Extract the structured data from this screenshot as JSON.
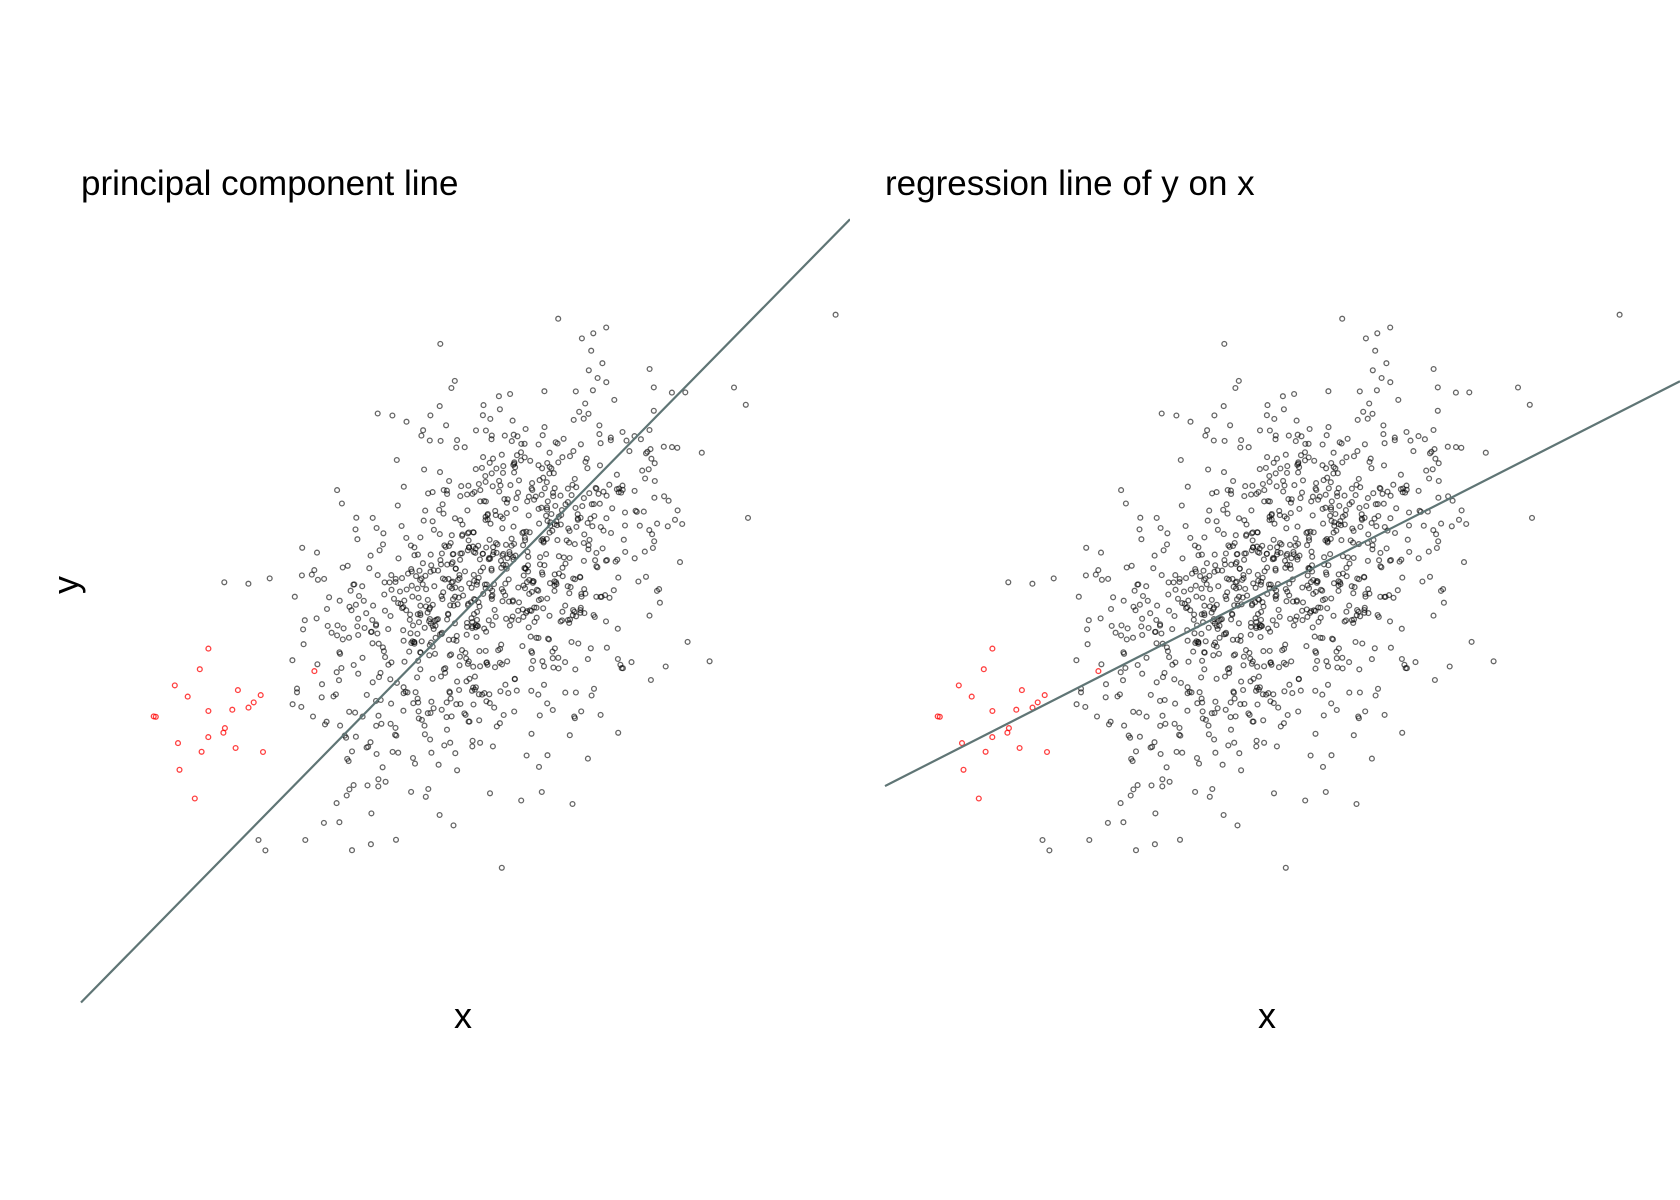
{
  "chart_data": [
    {
      "type": "scatter",
      "title": "principal component line",
      "xlabel": "x",
      "ylabel": "y",
      "xlim": [
        -3.7,
        3.7
      ],
      "ylim": [
        -3.7,
        3.7
      ],
      "grid": false,
      "axes_visible": false,
      "point_color": "#000000",
      "highlight_color": "#ff0000",
      "line": {
        "kind": "principal component",
        "slope": 1.0,
        "intercept": 0.0,
        "color": "#5f7575"
      }
    },
    {
      "type": "scatter",
      "title": "regression line of y on x",
      "xlabel": "x",
      "ylabel": "",
      "xlim": [
        -3.7,
        3.7
      ],
      "ylim": [
        -3.7,
        3.7
      ],
      "grid": false,
      "axes_visible": false,
      "point_color": "#000000",
      "highlight_color": "#ff0000",
      "line": {
        "kind": "regression of y on x",
        "slope": 0.5,
        "intercept": 0.0,
        "color": "#5f7575"
      }
    }
  ]
}
